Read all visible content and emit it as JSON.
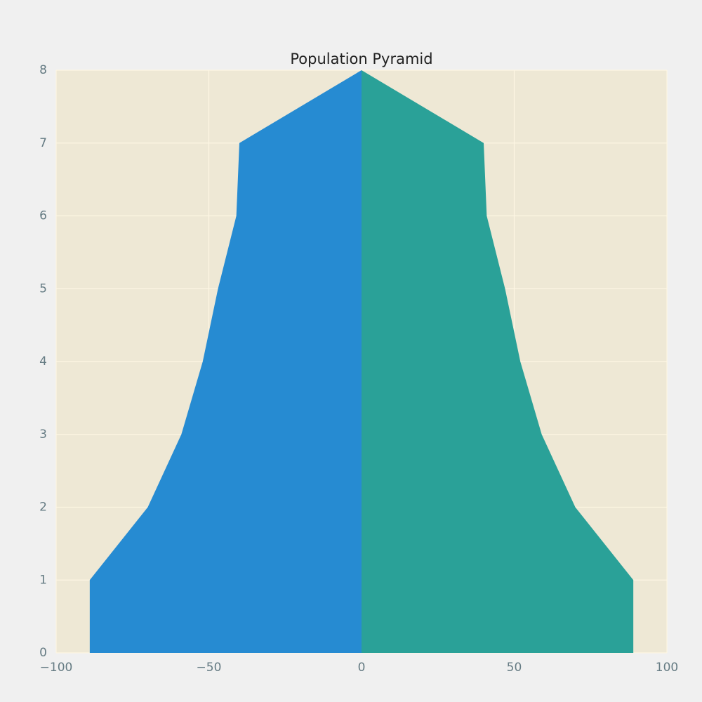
{
  "chart_data": {
    "type": "area",
    "orientation": "horizontal",
    "title": "Population Pyramid",
    "y": [
      0,
      1,
      2,
      3,
      4,
      5,
      6,
      7,
      8
    ],
    "series": [
      {
        "color": "#268bd2",
        "values": [
          -89,
          -89,
          -70,
          -59,
          -52,
          -47,
          -41,
          -40,
          0
        ]
      },
      {
        "color": "#2aa198",
        "values": [
          89,
          89,
          70,
          59,
          52,
          47,
          41,
          40,
          0
        ]
      }
    ],
    "xlim": [
      -100,
      100
    ],
    "xticks": [
      {
        "value": -100,
        "label": "−100"
      },
      {
        "value": -50,
        "label": "−50"
      },
      0,
      50,
      100
    ],
    "ylim": [
      0,
      8
    ],
    "yticks": [
      0,
      1,
      2,
      3,
      4,
      5,
      6,
      7,
      8
    ],
    "grid": true
  }
}
